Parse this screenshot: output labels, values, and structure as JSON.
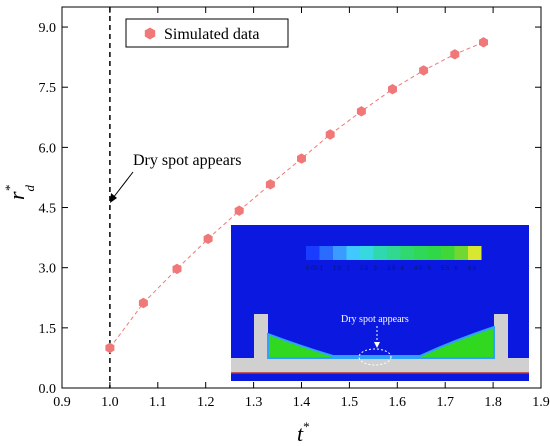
{
  "chart_data": {
    "type": "scatter",
    "xlabel": "t",
    "xlabel_sup": "*",
    "ylabel": "r",
    "ylabel_sup": "*",
    "ylabel_sub": "d",
    "xlim": [
      0.9,
      1.9
    ],
    "ylim": [
      0.0,
      9.5
    ],
    "x_ticks": [
      "0.9",
      "1.0",
      "1.1",
      "1.2",
      "1.3",
      "1.4",
      "1.5",
      "1.6",
      "1.7",
      "1.8",
      "1.9"
    ],
    "y_ticks": [
      "0.0",
      "1.5",
      "3.0",
      "4.5",
      "6.0",
      "7.5",
      "9.0"
    ],
    "legend": {
      "position": "top-left",
      "label": "Simulated data"
    },
    "series": [
      {
        "name": "Simulated data",
        "marker_color": "#f07878",
        "line_style": "dashed",
        "x": [
          1.0,
          1.07,
          1.14,
          1.205,
          1.27,
          1.335,
          1.4,
          1.46,
          1.525,
          1.59,
          1.655,
          1.72,
          1.78
        ],
        "y": [
          1.0,
          2.12,
          2.97,
          3.72,
          4.42,
          5.08,
          5.72,
          6.32,
          6.9,
          7.45,
          7.92,
          8.32,
          8.62
        ]
      }
    ],
    "vline": {
      "x": 1.0,
      "style": "dashed"
    },
    "annotation": {
      "text": "Dry spot appears"
    },
    "inset": {
      "colorbar_ticks": [
        "0.00",
        "1",
        "1.5",
        "2",
        "2.5",
        "3",
        "3.5",
        "4",
        "4.5",
        "5",
        "5.5",
        "6",
        "6.5"
      ],
      "colorbar_colors": [
        "#1a3cff",
        "#2a6cff",
        "#3a9cff",
        "#40c8ff",
        "#38d8e0",
        "#30d8b0",
        "#30d890",
        "#30d870",
        "#30d858",
        "#30d848",
        "#40d838",
        "#70d830",
        "#d8e830"
      ],
      "annotation": "Dry spot appears",
      "background_color": "#0a18e0",
      "liquid_color": "#30d820",
      "wall_color": "#d0d0d0"
    }
  }
}
